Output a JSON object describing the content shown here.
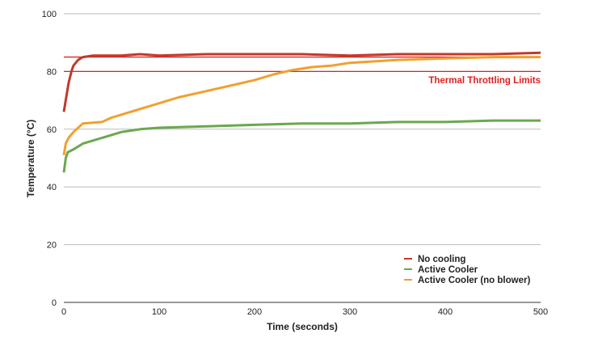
{
  "chart_data": {
    "type": "line",
    "xlabel": "Time (seconds)",
    "ylabel": "Temperature (°C)",
    "xlim": [
      0,
      500
    ],
    "ylim": [
      0,
      100
    ],
    "xticks": [
      0,
      100,
      200,
      300,
      400,
      500
    ],
    "yticks": [
      0,
      20,
      40,
      60,
      80,
      100
    ],
    "grid": "horizontal",
    "legend_position": "bottom-right",
    "annotation": {
      "text": "Thermal Throttling Limits",
      "color": "#e02020",
      "lines": [
        80,
        85
      ]
    },
    "series": [
      {
        "name": "No cooling",
        "color": "#c0392b",
        "x": [
          0,
          3,
          5,
          8,
          10,
          15,
          20,
          30,
          40,
          60,
          80,
          100,
          150,
          200,
          250,
          300,
          350,
          400,
          450,
          500
        ],
        "y": [
          66,
          72,
          76,
          80,
          82,
          84,
          85,
          85.5,
          85.5,
          85.5,
          86,
          85.5,
          86,
          86,
          86,
          85.5,
          86,
          86,
          86,
          86.5
        ]
      },
      {
        "name": "Active Cooler",
        "color": "#6aa84f",
        "x": [
          0,
          2,
          4,
          10,
          20,
          30,
          40,
          60,
          80,
          100,
          150,
          200,
          250,
          300,
          350,
          400,
          450,
          500
        ],
        "y": [
          45,
          50,
          52,
          53,
          55,
          56,
          57,
          59,
          60,
          60.5,
          61,
          61.5,
          62,
          62,
          62.5,
          62.5,
          63,
          63
        ]
      },
      {
        "name": "Active Cooler (no blower)",
        "color": "#f0a030",
        "x": [
          0,
          2,
          5,
          10,
          20,
          40,
          50,
          60,
          80,
          100,
          120,
          140,
          160,
          180,
          200,
          220,
          240,
          260,
          280,
          300,
          350,
          400,
          450,
          500
        ],
        "y": [
          51,
          55,
          57,
          59,
          62,
          62.5,
          64,
          65,
          67,
          69,
          71,
          72.5,
          74,
          75.5,
          77,
          79,
          80.5,
          81.5,
          82,
          83,
          84,
          84.5,
          85,
          85
        ]
      }
    ]
  }
}
